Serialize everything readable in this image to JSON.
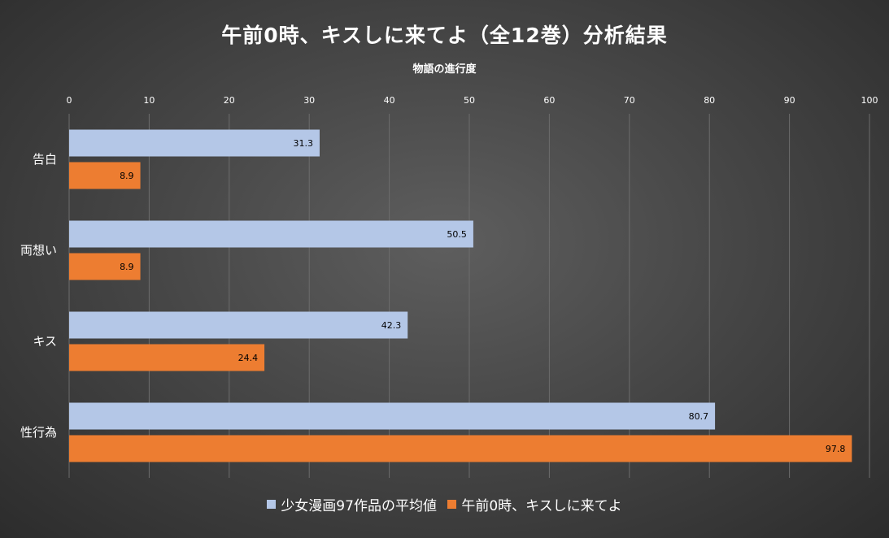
{
  "chart_data": {
    "type": "bar",
    "orientation": "horizontal",
    "title": "午前0時、キスしに来てよ（全12巻）分析結果",
    "axis_title": "物語の進行度",
    "categories": [
      "告白",
      "両想い",
      "キス",
      "性行為"
    ],
    "series": [
      {
        "name": "少女漫画97作品の平均値",
        "color": "#B4C7E7",
        "values": [
          31.3,
          50.5,
          42.3,
          80.7
        ]
      },
      {
        "name": "午前0時、キスしに来てよ",
        "color": "#ED7D31",
        "values": [
          8.9,
          8.9,
          24.4,
          97.8
        ]
      }
    ],
    "xlim": [
      0,
      100
    ],
    "ticks": [
      0,
      10,
      20,
      30,
      40,
      50,
      60,
      70,
      80,
      90,
      100
    ],
    "axis_position": "top",
    "grid": true,
    "legend_position": "bottom",
    "data_labels": true
  }
}
